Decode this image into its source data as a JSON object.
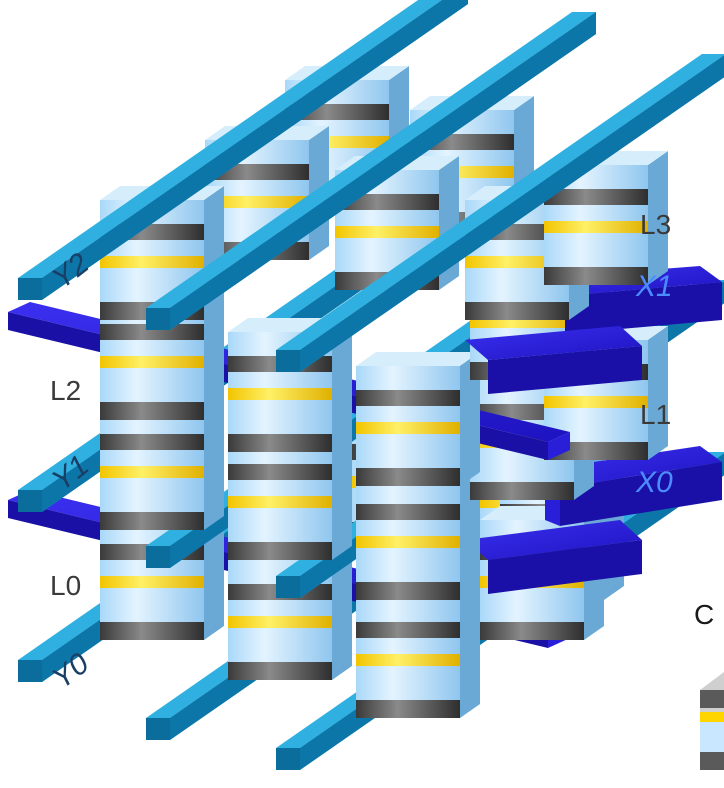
{
  "labels": {
    "levels": [
      "L0",
      "L1",
      "L2",
      "L3"
    ],
    "wordlines": [
      "Y0",
      "Y1",
      "Y2"
    ],
    "bitlines": [
      "X0",
      "X1"
    ],
    "legend_partial": "C"
  },
  "colors": {
    "wordline_top": "#1f94c6",
    "wordline_front": "#0a5f8a",
    "wordline_right": "#0c6e9d",
    "bitline_top": "#2a1fe0",
    "bitline_front": "#1a10a8",
    "bitline_right": "#2418c8",
    "cell_light": "#c9e8ff",
    "cell_mid": "#8ec8f2",
    "cell_yellow": "#ffd500",
    "cell_dark": "#555555"
  }
}
